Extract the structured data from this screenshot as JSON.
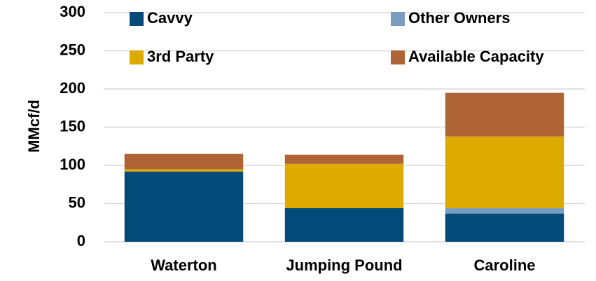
{
  "chart_data": {
    "type": "stacked_bar",
    "y_label": "MMcf/d",
    "categories": [
      "Waterton",
      "Jumping Pound",
      "Caroline"
    ],
    "series": [
      {
        "name": "Cavvy",
        "color": "#024b78",
        "values": [
          92,
          44,
          37
        ]
      },
      {
        "name": "Other Owners",
        "color": "#7b9cc1",
        "values": [
          0,
          0,
          7
        ]
      },
      {
        "name": "3rd Party",
        "color": "#dcaa00",
        "values": [
          3,
          58,
          94
        ]
      },
      {
        "name": "Available Capacity",
        "color": "#ae6434",
        "values": [
          20,
          12,
          57
        ]
      }
    ],
    "ylim": [
      0,
      300
    ],
    "yticks": [
      0,
      50,
      100,
      150,
      200,
      250,
      300
    ],
    "grid": true
  }
}
